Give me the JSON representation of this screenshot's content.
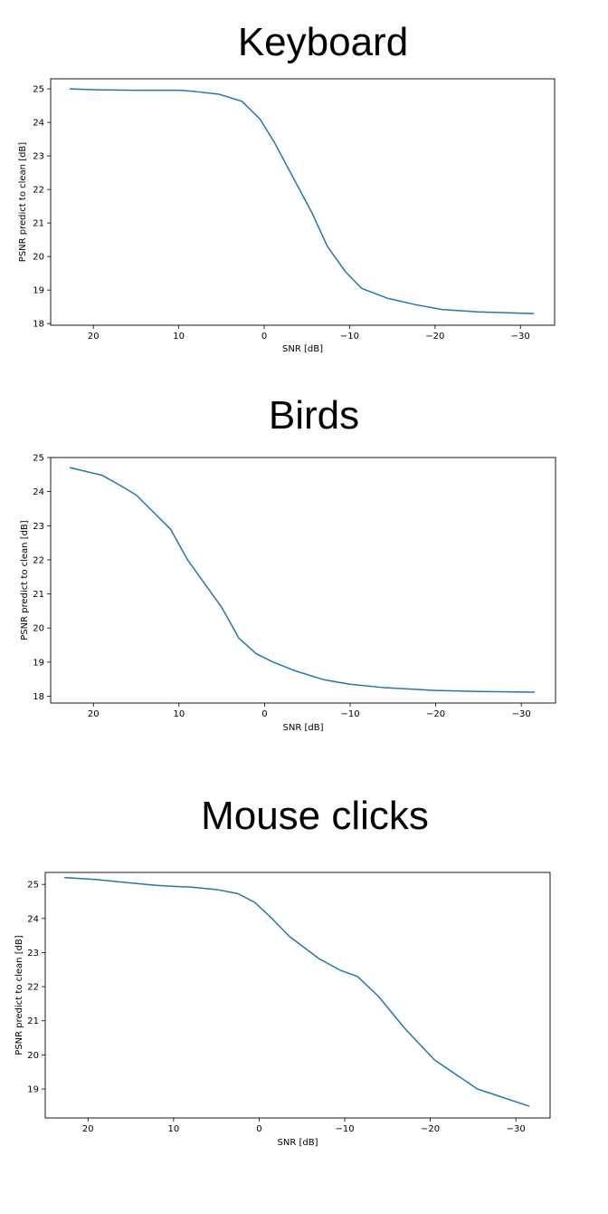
{
  "chart_data": [
    {
      "type": "line",
      "title": "Keyboard",
      "xlabel": "SNR [dB]",
      "ylabel": "PSNR predict to clean [dB]",
      "xlim": [
        25,
        -34
      ],
      "ylim": [
        17.95,
        25.3
      ],
      "xticks": [
        20,
        10,
        0,
        -10,
        -20,
        -30
      ],
      "xtick_labels": [
        "20",
        "10",
        "0",
        "−10",
        "−20",
        "−30"
      ],
      "yticks": [
        18,
        19,
        20,
        21,
        22,
        23,
        24,
        25
      ],
      "yticks_labels": [
        "18",
        "19",
        "20",
        "21",
        "22",
        "23",
        "24",
        "25"
      ],
      "grid": false,
      "series": [
        {
          "color": "#1f77b4",
          "x": [
            22.7,
            19,
            15.5,
            12,
            10,
            8,
            5.3,
            2.6,
            0.5,
            -1.2,
            -3.5,
            -5.6,
            -7.4,
            -9.5,
            -11.4,
            -14.5,
            -17.6,
            -20.8,
            -25,
            -28.5,
            -31.5
          ],
          "y": [
            25.0,
            24.97,
            24.96,
            24.96,
            24.96,
            24.92,
            24.84,
            24.63,
            24.1,
            23.4,
            22.3,
            21.3,
            20.3,
            19.55,
            19.05,
            18.75,
            18.57,
            18.42,
            18.35,
            18.32,
            18.3
          ]
        }
      ]
    },
    {
      "type": "line",
      "title": "Birds",
      "xlabel": "SNR [dB]",
      "ylabel": "PSNR predict to clean [dB]",
      "xlim": [
        25,
        -34
      ],
      "ylim": [
        17.8,
        25.0
      ],
      "xticks": [
        20,
        10,
        0,
        -10,
        -20,
        -30
      ],
      "xtick_labels": [
        "20",
        "10",
        "0",
        "−10",
        "−20",
        "−30"
      ],
      "yticks": [
        18,
        19,
        20,
        21,
        22,
        23,
        24,
        25
      ],
      "yticks_labels": [
        "18",
        "19",
        "20",
        "21",
        "22",
        "23",
        "24",
        "25"
      ],
      "grid": false,
      "series": [
        {
          "color": "#1f77b4",
          "x": [
            22.7,
            19,
            17,
            15,
            13,
            11,
            9,
            7,
            5,
            3,
            1,
            -1,
            -3.5,
            -7,
            -10,
            -14,
            -20,
            -25,
            -31.5
          ],
          "y": [
            24.7,
            24.48,
            24.2,
            23.9,
            23.4,
            22.9,
            22.0,
            21.3,
            20.6,
            19.7,
            19.25,
            19.0,
            18.75,
            18.48,
            18.35,
            18.25,
            18.17,
            18.14,
            18.12
          ]
        }
      ]
    },
    {
      "type": "line",
      "title": "Mouse clicks",
      "xlabel": "SNR [dB]",
      "ylabel": "PSNR predict to clean [dB]",
      "xlim": [
        25,
        -34
      ],
      "ylim": [
        18.15,
        25.35
      ],
      "xticks": [
        20,
        10,
        0,
        -10,
        -20,
        -30
      ],
      "xtick_labels": [
        "20",
        "10",
        "0",
        "−10",
        "−20",
        "−30"
      ],
      "yticks": [
        19,
        20,
        21,
        22,
        23,
        24,
        25
      ],
      "yticks_labels": [
        "19",
        "20",
        "21",
        "22",
        "23",
        "24",
        "25"
      ],
      "grid": false,
      "series": [
        {
          "color": "#1f77b4",
          "x": [
            22.7,
            19,
            15,
            12,
            10,
            8,
            5,
            2.5,
            0.5,
            -1.5,
            -3.5,
            -7,
            -9.5,
            -11.5,
            -14,
            -17,
            -20.5,
            -25.5,
            -31.5
          ],
          "y": [
            25.2,
            25.14,
            25.04,
            24.97,
            24.94,
            24.92,
            24.85,
            24.73,
            24.47,
            24.0,
            23.48,
            22.82,
            22.48,
            22.3,
            21.7,
            20.78,
            19.85,
            19.0,
            18.5
          ]
        }
      ]
    }
  ]
}
